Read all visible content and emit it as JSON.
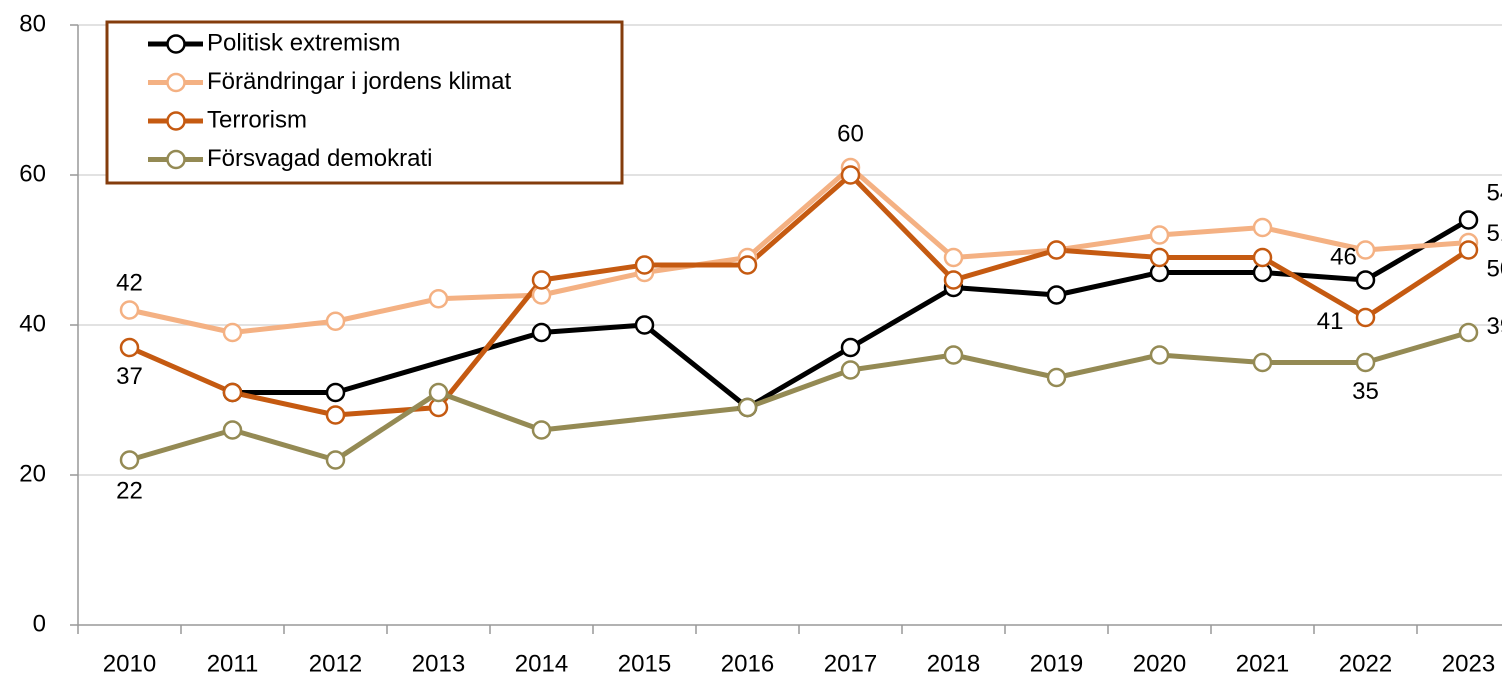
{
  "chart_data": {
    "type": "line",
    "categories": [
      "2010",
      "2011",
      "2012",
      "2013",
      "2014",
      "2015",
      "2016",
      "2017",
      "2018",
      "2019",
      "2020",
      "2021",
      "2022",
      "2023"
    ],
    "ylim": [
      0,
      80
    ],
    "yticks": [
      0,
      20,
      40,
      60,
      80
    ],
    "grid": true,
    "connect_gaps": true,
    "legend": "top-left",
    "series": [
      {
        "name": "Politisk extremism",
        "color": "#000000",
        "values": [
          null,
          31,
          31,
          null,
          39,
          40,
          29,
          37,
          45,
          44,
          47,
          47,
          46,
          54
        ],
        "show_labels": [
          12,
          13
        ]
      },
      {
        "name": "Förändringar i jordens klimat",
        "color": "#f4b183",
        "values": [
          42,
          39,
          40.5,
          43.5,
          44,
          47,
          49,
          61,
          49,
          50,
          52,
          53,
          50,
          51
        ],
        "show_labels": [
          0,
          13
        ]
      },
      {
        "name": "Terrorism",
        "color": "#c55a11",
        "values": [
          37,
          31,
          28,
          29,
          46,
          48,
          48,
          60,
          46,
          50,
          49,
          49,
          41,
          50
        ],
        "show_labels": [
          0,
          7,
          12,
          13
        ]
      },
      {
        "name": "Försvagad demokrati",
        "color": "#948a54",
        "values": [
          22,
          26,
          22,
          31,
          26,
          null,
          29,
          34,
          36,
          33,
          36,
          35,
          35,
          39
        ],
        "show_labels": [
          0,
          12,
          13
        ]
      }
    ]
  }
}
